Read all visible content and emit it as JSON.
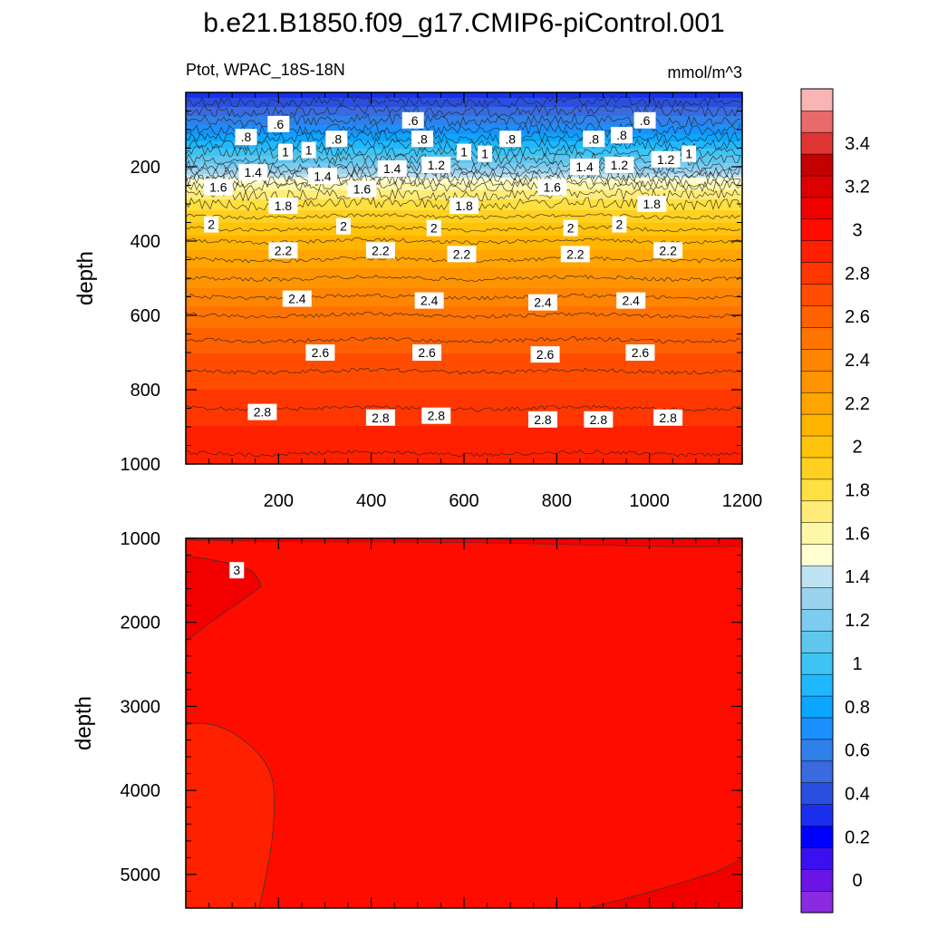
{
  "chart_data": [
    {
      "type": "contour",
      "title": "b.e21.B1850.f09_g17.CMIP6-piControl.001",
      "left_label": "Ptot, WPAC_18S-18N",
      "right_label": "mmol/m^3",
      "ylabel": "depth",
      "xlim": [
        0,
        1200
      ],
      "ylim": [
        1000,
        0
      ],
      "x_ticks": [
        200,
        400,
        600,
        800,
        1000,
        1200
      ],
      "y_ticks": [
        200,
        400,
        600,
        800,
        1000
      ],
      "contour_levels": [
        0.6,
        0.8,
        1.0,
        1.2,
        1.4,
        1.6,
        1.8,
        2.0,
        2.2,
        2.4,
        2.6,
        2.8
      ],
      "profile": [
        {
          "depth": 0,
          "value": 0.3
        },
        {
          "depth": 100,
          "value": 0.7
        },
        {
          "depth": 200,
          "value": 1.2
        },
        {
          "depth": 250,
          "value": 1.6
        },
        {
          "depth": 300,
          "value": 1.8
        },
        {
          "depth": 400,
          "value": 2.1
        },
        {
          "depth": 500,
          "value": 2.3
        },
        {
          "depth": 600,
          "value": 2.5
        },
        {
          "depth": 700,
          "value": 2.65
        },
        {
          "depth": 800,
          "value": 2.75
        },
        {
          "depth": 900,
          "value": 2.85
        },
        {
          "depth": 1000,
          "value": 2.92
        }
      ],
      "contour_labels": [
        {
          "text": ".6",
          "x": 490,
          "y": 75
        },
        {
          "text": ".6",
          "x": 990,
          "y": 75
        },
        {
          "text": ".6",
          "x": 200,
          "y": 85
        },
        {
          "text": ".8",
          "x": 130,
          "y": 120
        },
        {
          "text": ".8",
          "x": 325,
          "y": 125
        },
        {
          "text": ".8",
          "x": 510,
          "y": 125
        },
        {
          "text": ".8",
          "x": 700,
          "y": 125
        },
        {
          "text": ".8",
          "x": 880,
          "y": 125
        },
        {
          "text": ".8",
          "x": 940,
          "y": 115
        },
        {
          "text": "1",
          "x": 215,
          "y": 160
        },
        {
          "text": "1",
          "x": 265,
          "y": 155
        },
        {
          "text": "1",
          "x": 600,
          "y": 160
        },
        {
          "text": "1",
          "x": 645,
          "y": 165
        },
        {
          "text": "1",
          "x": 1085,
          "y": 165
        },
        {
          "text": "1.2",
          "x": 540,
          "y": 195
        },
        {
          "text": "1.2",
          "x": 935,
          "y": 195
        },
        {
          "text": "1.2",
          "x": 1035,
          "y": 180
        },
        {
          "text": "1.4",
          "x": 145,
          "y": 215
        },
        {
          "text": "1.4",
          "x": 295,
          "y": 225
        },
        {
          "text": "1.4",
          "x": 445,
          "y": 205
        },
        {
          "text": "1.4",
          "x": 860,
          "y": 200
        },
        {
          "text": "1.6",
          "x": 70,
          "y": 255
        },
        {
          "text": "1.6",
          "x": 380,
          "y": 260
        },
        {
          "text": "1.6",
          "x": 790,
          "y": 255
        },
        {
          "text": "1.8",
          "x": 210,
          "y": 305
        },
        {
          "text": "1.8",
          "x": 600,
          "y": 305
        },
        {
          "text": "1.8",
          "x": 1005,
          "y": 300
        },
        {
          "text": "2",
          "x": 55,
          "y": 355
        },
        {
          "text": "2",
          "x": 340,
          "y": 360
        },
        {
          "text": "2",
          "x": 535,
          "y": 365
        },
        {
          "text": "2",
          "x": 830,
          "y": 365
        },
        {
          "text": "2",
          "x": 935,
          "y": 355
        },
        {
          "text": "2.2",
          "x": 210,
          "y": 425
        },
        {
          "text": "2.2",
          "x": 420,
          "y": 425
        },
        {
          "text": "2.2",
          "x": 595,
          "y": 435
        },
        {
          "text": "2.2",
          "x": 840,
          "y": 435
        },
        {
          "text": "2.2",
          "x": 1040,
          "y": 425
        },
        {
          "text": "2.4",
          "x": 240,
          "y": 555
        },
        {
          "text": "2.4",
          "x": 525,
          "y": 560
        },
        {
          "text": "2.4",
          "x": 770,
          "y": 565
        },
        {
          "text": "2.4",
          "x": 960,
          "y": 560
        },
        {
          "text": "2.6",
          "x": 290,
          "y": 700
        },
        {
          "text": "2.6",
          "x": 520,
          "y": 700
        },
        {
          "text": "2.6",
          "x": 775,
          "y": 705
        },
        {
          "text": "2.6",
          "x": 980,
          "y": 700
        },
        {
          "text": "2.8",
          "x": 165,
          "y": 860
        },
        {
          "text": "2.8",
          "x": 420,
          "y": 875
        },
        {
          "text": "2.8",
          "x": 540,
          "y": 870
        },
        {
          "text": "2.8",
          "x": 770,
          "y": 880
        },
        {
          "text": "2.8",
          "x": 890,
          "y": 880
        },
        {
          "text": "2.8",
          "x": 1040,
          "y": 875
        }
      ]
    },
    {
      "type": "contour",
      "ylabel": "depth",
      "xlim": [
        0,
        1200
      ],
      "ylim": [
        5400,
        1000
      ],
      "y_ticks": [
        1000,
        2000,
        3000,
        4000,
        5000
      ],
      "regions": [
        {
          "name": "base",
          "value": 3.0
        },
        {
          "name": "upper-left",
          "value": 3.1
        },
        {
          "name": "lower-left",
          "value": 2.9
        },
        {
          "name": "lower-right",
          "value": 3.1
        }
      ],
      "contour_labels": [
        {
          "text": "3",
          "x": 110,
          "y": 1380
        }
      ]
    }
  ],
  "colorbar": {
    "tick_labels": [
      "0",
      "0.2",
      "0.4",
      "0.6",
      "0.8",
      "1",
      "1.2",
      "1.4",
      "1.6",
      "1.8",
      "2",
      "2.2",
      "2.4",
      "2.6",
      "2.8",
      "3",
      "3.2",
      "3.4"
    ],
    "colors": [
      "#8a2be2",
      "#6a14e6",
      "#3a0ff0",
      "#0000ff",
      "#1a2fee",
      "#2a4fe0",
      "#3a6ae0",
      "#2f80ea",
      "#1a90ff",
      "#0aa6ff",
      "#1fb8ff",
      "#3cc4f4",
      "#5fc6ee",
      "#7ccbf0",
      "#9bd2ee",
      "#bde2f2",
      "#ffffd0",
      "#fff7a8",
      "#ffec78",
      "#ffe040",
      "#ffd020",
      "#ffc40a",
      "#ffb400",
      "#ffa400",
      "#ff9400",
      "#ff8400",
      "#ff7300",
      "#ff6000",
      "#ff4c00",
      "#ff3600",
      "#ff2000",
      "#ff0c00",
      "#f20000",
      "#dc0000",
      "#c40000",
      "#e03434",
      "#e86a6a",
      "#fab4b4"
    ]
  }
}
